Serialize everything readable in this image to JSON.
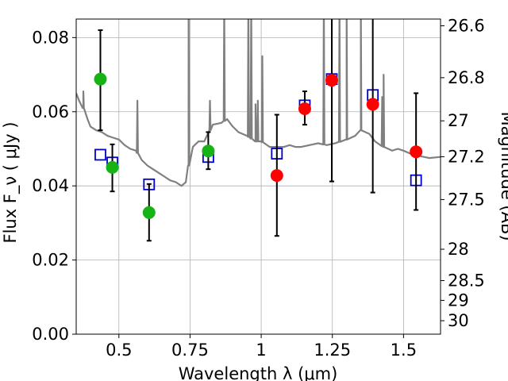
{
  "chart_data": {
    "type": "scatter",
    "xlabel": "Wavelength  λ (μm)",
    "ylabel": "Flux  F_ν  ( μJy )",
    "ylabel_right": "Magnitude (AB)",
    "xlim": [
      0.35,
      1.63
    ],
    "ylim": [
      0.0,
      0.085
    ],
    "grid": true,
    "x_ticks": [
      {
        "value": 0.5,
        "label": "0.5"
      },
      {
        "value": 0.75,
        "label": "0.75"
      },
      {
        "value": 1.0,
        "label": "1"
      },
      {
        "value": 1.25,
        "label": "1.25"
      },
      {
        "value": 1.5,
        "label": "1.5"
      }
    ],
    "y_ticks": [
      {
        "value": 0.0,
        "label": "0.00"
      },
      {
        "value": 0.02,
        "label": "0.02"
      },
      {
        "value": 0.04,
        "label": "0.04"
      },
      {
        "value": 0.06,
        "label": "0.06"
      },
      {
        "value": 0.08,
        "label": "0.08"
      }
    ],
    "right_ticks": [
      {
        "mag": 26.6,
        "label": "26.6"
      },
      {
        "mag": 26.8,
        "label": "26.8"
      },
      {
        "mag": 27.0,
        "label": "27"
      },
      {
        "mag": 27.2,
        "label": "27.2"
      },
      {
        "mag": 27.5,
        "label": "27.5"
      },
      {
        "mag": 28.0,
        "label": "28"
      },
      {
        "mag": 28.5,
        "label": "28.5"
      },
      {
        "mag": 29.0,
        "label": "29"
      },
      {
        "mag": 30.0,
        "label": "30"
      }
    ],
    "series": [
      {
        "style": "green-circle",
        "color": "#16b216",
        "points": [
          {
            "x": 0.435,
            "y": 0.0688,
            "err": [
              0.055,
              0.082
            ]
          },
          {
            "x": 0.477,
            "y": 0.045,
            "err": [
              0.0385,
              0.0512
            ]
          },
          {
            "x": 0.606,
            "y": 0.0328,
            "err": [
              0.0252,
              0.0405
            ]
          },
          {
            "x": 0.814,
            "y": 0.0494,
            "err": [
              0.0445,
              0.0545
            ]
          }
        ]
      },
      {
        "style": "red-circle",
        "color": "#ff0000",
        "points": [
          {
            "x": 1.055,
            "y": 0.0428,
            "err": [
              0.0265,
              0.0592
            ]
          },
          {
            "x": 1.153,
            "y": 0.0608,
            "err": [
              0.0565,
              0.0655
            ]
          },
          {
            "x": 1.248,
            "y": 0.0685,
            "err": [
              0.0412,
              0.0955
            ]
          },
          {
            "x": 1.392,
            "y": 0.062,
            "err": [
              0.0382,
              0.0858
            ]
          },
          {
            "x": 1.544,
            "y": 0.0492,
            "err": [
              0.0335,
              0.065
            ]
          }
        ]
      },
      {
        "style": "blue-open-square",
        "color": "#0000cc",
        "points": [
          {
            "x": 0.435,
            "y": 0.0484
          },
          {
            "x": 0.477,
            "y": 0.0463
          },
          {
            "x": 0.606,
            "y": 0.0404
          },
          {
            "x": 0.814,
            "y": 0.0478
          },
          {
            "x": 1.055,
            "y": 0.0487
          },
          {
            "x": 1.153,
            "y": 0.0617
          },
          {
            "x": 1.248,
            "y": 0.0688
          },
          {
            "x": 1.392,
            "y": 0.0645
          },
          {
            "x": 1.544,
            "y": 0.0415
          }
        ]
      },
      {
        "style": "gray-line",
        "color": "#808080",
        "points": [
          [
            0.35,
            0.065
          ],
          [
            0.36,
            0.063
          ],
          [
            0.375,
            0.061
          ],
          [
            0.39,
            0.058
          ],
          [
            0.4,
            0.056
          ],
          [
            0.42,
            0.055
          ],
          [
            0.44,
            0.0545
          ],
          [
            0.46,
            0.0535
          ],
          [
            0.48,
            0.053
          ],
          [
            0.5,
            0.0525
          ],
          [
            0.52,
            0.051
          ],
          [
            0.54,
            0.05
          ],
          [
            0.56,
            0.0495
          ],
          [
            0.58,
            0.047
          ],
          [
            0.6,
            0.0455
          ],
          [
            0.62,
            0.0445
          ],
          [
            0.64,
            0.0435
          ],
          [
            0.66,
            0.0425
          ],
          [
            0.68,
            0.0415
          ],
          [
            0.7,
            0.041
          ],
          [
            0.72,
            0.04
          ],
          [
            0.735,
            0.041
          ],
          [
            0.745,
            0.0455
          ],
          [
            0.76,
            0.0505
          ],
          [
            0.78,
            0.052
          ],
          [
            0.8,
            0.052
          ],
          [
            0.83,
            0.0565
          ],
          [
            0.86,
            0.057
          ],
          [
            0.88,
            0.058
          ],
          [
            0.9,
            0.056
          ],
          [
            0.92,
            0.0545
          ],
          [
            0.95,
            0.0535
          ],
          [
            0.98,
            0.052
          ],
          [
            1.0,
            0.052
          ],
          [
            1.03,
            0.0505
          ],
          [
            1.05,
            0.0505
          ],
          [
            1.08,
            0.0505
          ],
          [
            1.1,
            0.051
          ],
          [
            1.12,
            0.0505
          ],
          [
            1.14,
            0.0505
          ],
          [
            1.17,
            0.051
          ],
          [
            1.2,
            0.0515
          ],
          [
            1.23,
            0.051
          ],
          [
            1.26,
            0.0515
          ],
          [
            1.3,
            0.0525
          ],
          [
            1.33,
            0.0535
          ],
          [
            1.35,
            0.055
          ],
          [
            1.38,
            0.054
          ],
          [
            1.4,
            0.052
          ],
          [
            1.43,
            0.0505
          ],
          [
            1.46,
            0.0495
          ],
          [
            1.48,
            0.05
          ],
          [
            1.5,
            0.0495
          ],
          [
            1.53,
            0.0485
          ],
          [
            1.56,
            0.048
          ],
          [
            1.59,
            0.0475
          ],
          [
            1.63,
            0.0478
          ]
        ],
        "spikes": [
          [
            0.375,
            0.0655
          ],
          [
            0.565,
            0.063
          ],
          [
            0.745,
            0.09
          ],
          [
            0.82,
            0.063
          ],
          [
            0.87,
            0.09
          ],
          [
            0.955,
            0.09
          ],
          [
            0.965,
            0.09
          ],
          [
            0.98,
            0.062
          ],
          [
            0.988,
            0.063
          ],
          [
            1.004,
            0.075
          ],
          [
            1.22,
            0.09
          ],
          [
            1.275,
            0.09
          ],
          [
            1.3,
            0.09
          ],
          [
            1.35,
            0.09
          ],
          [
            1.425,
            0.064
          ],
          [
            1.43,
            0.07
          ]
        ]
      }
    ]
  }
}
